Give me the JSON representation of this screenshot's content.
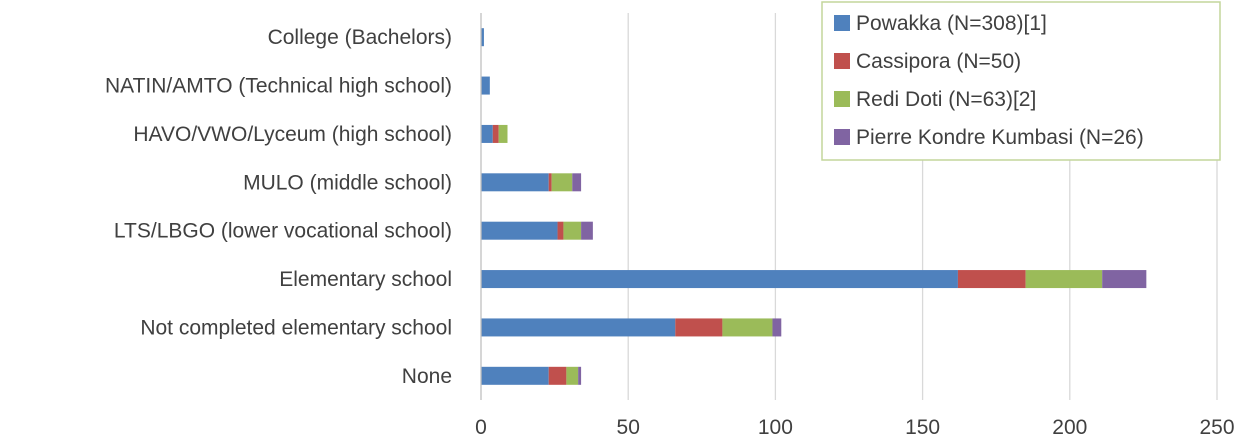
{
  "chart_data": {
    "type": "bar",
    "orientation": "horizontal",
    "stacked": true,
    "categories": [
      "College (Bachelors)",
      "NATIN/AMTO (Technical high school)",
      "HAVO/VWO/Lyceum (high school)",
      "MULO (middle school)",
      "LTS/LBGO (lower vocational school)",
      "Elementary school",
      "Not completed elementary school",
      "None"
    ],
    "series": [
      {
        "name": "Powakka (N=308)[1]",
        "color": "#4f81bd",
        "values": [
          1,
          3,
          4,
          23,
          26,
          162,
          66,
          23
        ]
      },
      {
        "name": "Cassipora (N=50)",
        "color": "#c0504d",
        "values": [
          0,
          0,
          2,
          1,
          2,
          23,
          16,
          6
        ]
      },
      {
        "name": "Redi Doti (N=63)[2]",
        "color": "#9bbb59",
        "values": [
          0,
          0,
          3,
          7,
          6,
          26,
          17,
          4
        ]
      },
      {
        "name": "Pierre Kondre Kumbasi (N=26)",
        "color": "#8064a2",
        "values": [
          0,
          0,
          0,
          3,
          4,
          15,
          3,
          1
        ]
      }
    ],
    "xlim": [
      0,
      250
    ],
    "xticks": [
      0,
      50,
      100,
      150,
      200,
      250
    ],
    "xtick_labels": [
      "0",
      "50",
      "100",
      "150",
      "200",
      "250"
    ],
    "grid": true,
    "legend_position": "top-right",
    "title": "",
    "xlabel": "",
    "ylabel": ""
  }
}
